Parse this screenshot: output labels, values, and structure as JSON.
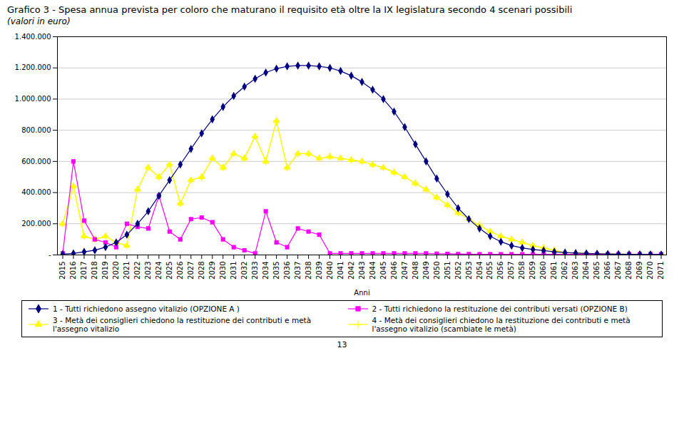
{
  "chart_data": {
    "type": "line",
    "title": "Grafico 3 - Spesa annua prevista per coloro che maturano il requisito età oltre la IX legislatura secondo 4 scenari possibili",
    "subtitle": "(valori in euro)",
    "x_label": "Anni",
    "annotations": [
      "13"
    ],
    "x": [
      2015,
      2016,
      2017,
      2018,
      2019,
      2020,
      2021,
      2022,
      2023,
      2024,
      2025,
      2026,
      2027,
      2028,
      2029,
      2030,
      2031,
      2032,
      2033,
      2034,
      2035,
      2036,
      2037,
      2038,
      2039,
      2040,
      2041,
      2042,
      2043,
      2044,
      2045,
      2046,
      2047,
      2048,
      2049,
      2050,
      2051,
      2052,
      2053,
      2054,
      2055,
      2056,
      2057,
      2058,
      2059,
      2060,
      2061,
      2062,
      2063,
      2064,
      2065,
      2066,
      2067,
      2068,
      2069,
      2070,
      2071
    ],
    "series": [
      {
        "name": "1 - Tutti richiedono assegno vitalizio (OPZIONE A )",
        "color": "#000080",
        "marker": "diamond",
        "values": [
          5000,
          10000,
          20000,
          30000,
          50000,
          80000,
          130000,
          200000,
          280000,
          380000,
          480000,
          580000,
          680000,
          780000,
          870000,
          950000,
          1020000,
          1080000,
          1130000,
          1170000,
          1195000,
          1210000,
          1215000,
          1215000,
          1210000,
          1200000,
          1180000,
          1150000,
          1110000,
          1060000,
          1000000,
          920000,
          820000,
          710000,
          600000,
          490000,
          390000,
          300000,
          230000,
          170000,
          120000,
          85000,
          60000,
          45000,
          35000,
          28000,
          20000,
          15000,
          12000,
          10000,
          8000,
          6000,
          5000,
          4000,
          3500,
          3000,
          2500
        ]
      },
      {
        "name": "2 - Tutti richiedono la restituzione dei contributi versati (OPZIONE B)",
        "color": "#FF00FF",
        "marker": "square",
        "values": [
          10000,
          600000,
          220000,
          100000,
          80000,
          50000,
          200000,
          180000,
          170000,
          380000,
          150000,
          100000,
          230000,
          240000,
          210000,
          100000,
          50000,
          30000,
          10000,
          280000,
          80000,
          50000,
          170000,
          150000,
          130000,
          10000,
          10000,
          10000,
          10000,
          10000,
          10000,
          10000,
          10000,
          10000,
          10000,
          8000,
          7000,
          6000,
          5000,
          4000,
          4000,
          4000,
          4000,
          4000,
          4000,
          4000,
          4000,
          4000,
          4000,
          4000,
          4000,
          4000,
          4000,
          4000,
          4000,
          4000,
          4000
        ]
      },
      {
        "name": "3 - Metà dei consiglieri chiedono la restituzione dei contributi e metà l'assegno vitalizio",
        "color": "#FFFF00",
        "marker": "triangle",
        "values": [
          200000,
          440000,
          120000,
          100000,
          120000,
          80000,
          60000,
          420000,
          560000,
          500000,
          580000,
          330000,
          480000,
          500000,
          620000,
          560000,
          650000,
          620000,
          760000,
          600000,
          860000,
          560000,
          650000,
          650000,
          620000,
          630000,
          620000,
          610000,
          600000,
          580000,
          560000,
          530000,
          500000,
          460000,
          420000,
          370000,
          320000,
          270000,
          230000,
          190000,
          150000,
          120000,
          100000,
          80000,
          60000,
          45000,
          30000,
          15000,
          12000,
          10000,
          8000,
          6000,
          5000,
          4000,
          3500,
          3000,
          2500
        ]
      },
      {
        "name": "4 - Metà dei consiglieri chiedono la restituzione dei contributi e metà l'assegno vitalizio (scambiate le metà)",
        "color": "#FFFF00",
        "marker": "plus",
        "values": [
          200000,
          440000,
          120000,
          100000,
          120000,
          80000,
          60000,
          420000,
          560000,
          500000,
          580000,
          330000,
          480000,
          500000,
          620000,
          560000,
          650000,
          620000,
          760000,
          600000,
          860000,
          560000,
          650000,
          650000,
          620000,
          630000,
          620000,
          610000,
          600000,
          580000,
          560000,
          530000,
          500000,
          460000,
          420000,
          370000,
          320000,
          270000,
          230000,
          190000,
          150000,
          120000,
          100000,
          80000,
          60000,
          45000,
          30000,
          15000,
          12000,
          10000,
          8000,
          6000,
          5000,
          4000,
          3500,
          3000,
          2500
        ]
      }
    ],
    "xlim": [
      2014.5,
      2071.5
    ],
    "xticks": [
      2015,
      2016,
      2017,
      2018,
      2019,
      2020,
      2021,
      2022,
      2023,
      2024,
      2025,
      2026,
      2027,
      2028,
      2029,
      2030,
      2031,
      2032,
      2033,
      2034,
      2035,
      2036,
      2037,
      2038,
      2039,
      2040,
      2041,
      2042,
      2043,
      2044,
      2045,
      2046,
      2047,
      2048,
      2049,
      2050,
      2051,
      2052,
      2053,
      2054,
      2055,
      2056,
      2057,
      2058,
      2059,
      2060,
      2061,
      2062,
      2063,
      2064,
      2065,
      2066,
      2067,
      2068,
      2069,
      2070,
      2071
    ],
    "ylim": [
      0,
      1400000
    ],
    "yticks": [
      {
        "value": 0,
        "label": "-"
      },
      {
        "value": 200000,
        "label": "200.000"
      },
      {
        "value": 400000,
        "label": "400.000"
      },
      {
        "value": 600000,
        "label": "600.000"
      },
      {
        "value": 800000,
        "label": "800.000"
      },
      {
        "value": 1000000,
        "label": "1.000.000"
      },
      {
        "value": 1200000,
        "label": "1.200.000"
      },
      {
        "value": 1400000,
        "label": "1.400.000"
      }
    ],
    "grid": "y",
    "legend": "bottom"
  }
}
